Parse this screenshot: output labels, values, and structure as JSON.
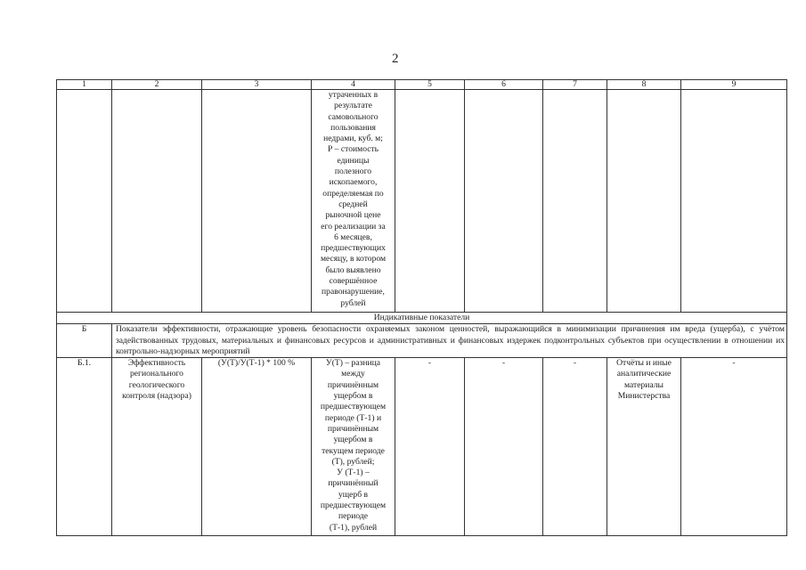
{
  "page_number": "2",
  "columns": [
    "1",
    "2",
    "3",
    "4",
    "5",
    "6",
    "7",
    "8",
    "9"
  ],
  "row_continued": {
    "col4": "утраченных в\nрезультате\nсамовольного\nпользования\nнедрами, куб. м;\nР – стоимость\nединицы\nполезного\nископаемого,\nопределяемая по\nсредней\nрыночной цене\nего реализации за\n6 месяцев,\nпредшествующих\nмесяцу, в котором\nбыло выявлено\nсовершённое\nправонарушение,\nрублей"
  },
  "section_title": "Индикативные показатели",
  "group": {
    "code": "Б",
    "text": "Показатели эффективности, отражающие уровень безопасности охраняемых законом ценностей, выражающийся в минимизации причинения им вреда (ущерба), с учётом задействованных трудовых, материальных и финансовых ресурсов и административных и финансовых издержек подконтрольных субъектов при осуществлении в отношении их контрольно-надзорных мероприятий"
  },
  "row_b1": {
    "col1": "Б.1.",
    "col2": "Эффективность\nрегионального\nгеологического\nконтроля (надзора)",
    "col3": "(У(Т)/У(Т-1) * 100 %",
    "col4": "У(Т) – разница\nмежду\nпричинённым\nущербом в\nпредшествующем\nпериоде (Т-1) и\nпричинённым\nущербом в\nтекущем периоде\n(Т), рублей;\nУ (Т-1) –\nпричинённый\nущерб в\nпредшествующем\nпериоде\n(Т-1), рублей",
    "col5": "-",
    "col6": "-",
    "col7": "-",
    "col8": "Отчёты и иные\nаналитические\nматериалы\nМинистерства",
    "col9": "-"
  }
}
